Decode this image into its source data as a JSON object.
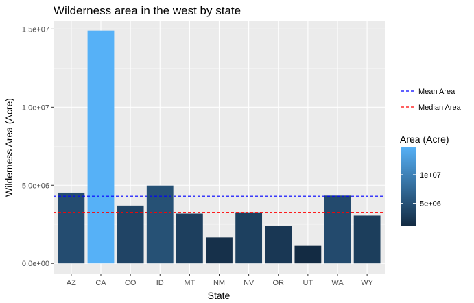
{
  "chart_data": {
    "type": "bar",
    "title": "Wilderness area in the west by state",
    "xlabel": "State",
    "ylabel": "Wilderness Area (Acre)",
    "categories": [
      "AZ",
      "CA",
      "CO",
      "ID",
      "MT",
      "NM",
      "NV",
      "OR",
      "UT",
      "WA",
      "WY"
    ],
    "values": [
      4530000,
      14900000,
      3700000,
      4980000,
      3190000,
      1660000,
      3270000,
      2390000,
      1120000,
      4340000,
      3060000
    ],
    "ylim": [
      -650000,
      15500000
    ],
    "yticks": [
      0,
      5000000,
      10000000,
      15000000
    ],
    "ytick_labels": [
      "0.0e+00",
      "5.0e+06",
      "1.0e+07",
      "1.5e+07"
    ],
    "grid": true,
    "reference_lines": [
      {
        "label": "Mean Area",
        "value": 4300000,
        "color": "#0000ff",
        "dash": "dashed"
      },
      {
        "label": "Median Area",
        "value": 3270000,
        "color": "#ff0000",
        "dash": "dashed"
      }
    ],
    "color_scale": {
      "title": "Area (Acre)",
      "low_color": "#132b43",
      "high_color": "#56b1f7",
      "min": 1120000,
      "max": 14900000,
      "ticks": [
        5000000,
        10000000
      ],
      "tick_labels": [
        "5e+06",
        "1e+07"
      ]
    },
    "legend_position": "right",
    "panel_background": "#ebebeb"
  }
}
